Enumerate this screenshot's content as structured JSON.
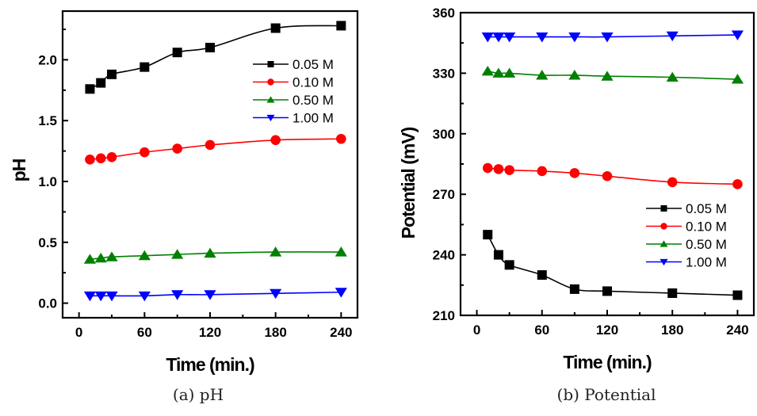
{
  "chart_data": [
    {
      "type": "line",
      "panel": "a",
      "caption": "(a)  pH",
      "title": "",
      "xlabel": "Time (min.)",
      "ylabel": "pH",
      "xlim": [
        -15,
        255
      ],
      "ylim": [
        -0.12,
        2.4
      ],
      "xticks": [
        0,
        60,
        120,
        180,
        240
      ],
      "xtick_labels": [
        "0",
        "60",
        "120",
        "180",
        "240"
      ],
      "xminor_step": 30,
      "yticks": [
        0.0,
        0.5,
        1.0,
        1.5,
        2.0
      ],
      "ytick_labels": [
        "0.0",
        "0.5",
        "1.0",
        "1.5",
        "2.0"
      ],
      "yminor_step": 0.25,
      "grid": false,
      "legend_position": "top-right",
      "x": [
        10,
        20,
        30,
        60,
        90,
        120,
        180,
        240
      ],
      "series": [
        {
          "name": "0.05 M",
          "color": "#000000",
          "marker": "square",
          "values": [
            1.76,
            1.81,
            1.88,
            1.94,
            2.06,
            2.1,
            2.26,
            2.28
          ]
        },
        {
          "name": "0.10 M",
          "color": "#ff0000",
          "marker": "circle",
          "values": [
            1.18,
            1.19,
            1.2,
            1.24,
            1.27,
            1.3,
            1.34,
            1.35
          ]
        },
        {
          "name": "0.50 M",
          "color": "#008000",
          "marker": "triangle-up",
          "values": [
            0.36,
            0.37,
            0.38,
            0.39,
            0.4,
            0.41,
            0.42,
            0.42
          ]
        },
        {
          "name": "1.00 M",
          "color": "#0000ff",
          "marker": "triangle-down",
          "values": [
            0.06,
            0.06,
            0.06,
            0.06,
            0.07,
            0.07,
            0.08,
            0.09
          ]
        }
      ]
    },
    {
      "type": "line",
      "panel": "b",
      "caption": "(b)  Potential",
      "title": "",
      "xlabel": "Time (min.)",
      "ylabel": "Potential (mV)",
      "xlim": [
        -15,
        255
      ],
      "ylim": [
        210,
        360
      ],
      "xticks": [
        0,
        60,
        120,
        180,
        240
      ],
      "xtick_labels": [
        "0",
        "60",
        "120",
        "180",
        "240"
      ],
      "xminor_step": 30,
      "yticks": [
        210,
        240,
        270,
        300,
        330,
        360
      ],
      "ytick_labels": [
        "210",
        "240",
        "270",
        "300",
        "330",
        "360"
      ],
      "yminor_step": 15,
      "grid": false,
      "legend_position": "center-right",
      "x": [
        10,
        20,
        30,
        60,
        90,
        120,
        180,
        240
      ],
      "series": [
        {
          "name": "0.05 M",
          "color": "#000000",
          "marker": "square",
          "values": [
            250,
            240,
            235,
            230,
            223,
            222,
            221,
            220
          ]
        },
        {
          "name": "0.10 M",
          "color": "#ff0000",
          "marker": "circle",
          "values": [
            283,
            282.5,
            282,
            281.5,
            280.5,
            279,
            276,
            275
          ]
        },
        {
          "name": "0.50 M",
          "color": "#008000",
          "marker": "triangle-up",
          "values": [
            331,
            330,
            330,
            329,
            329,
            328.5,
            328,
            327
          ]
        },
        {
          "name": "1.00 M",
          "color": "#0000ff",
          "marker": "triangle-down",
          "values": [
            348,
            348,
            348,
            348,
            348,
            348,
            348.5,
            349
          ]
        }
      ]
    }
  ]
}
